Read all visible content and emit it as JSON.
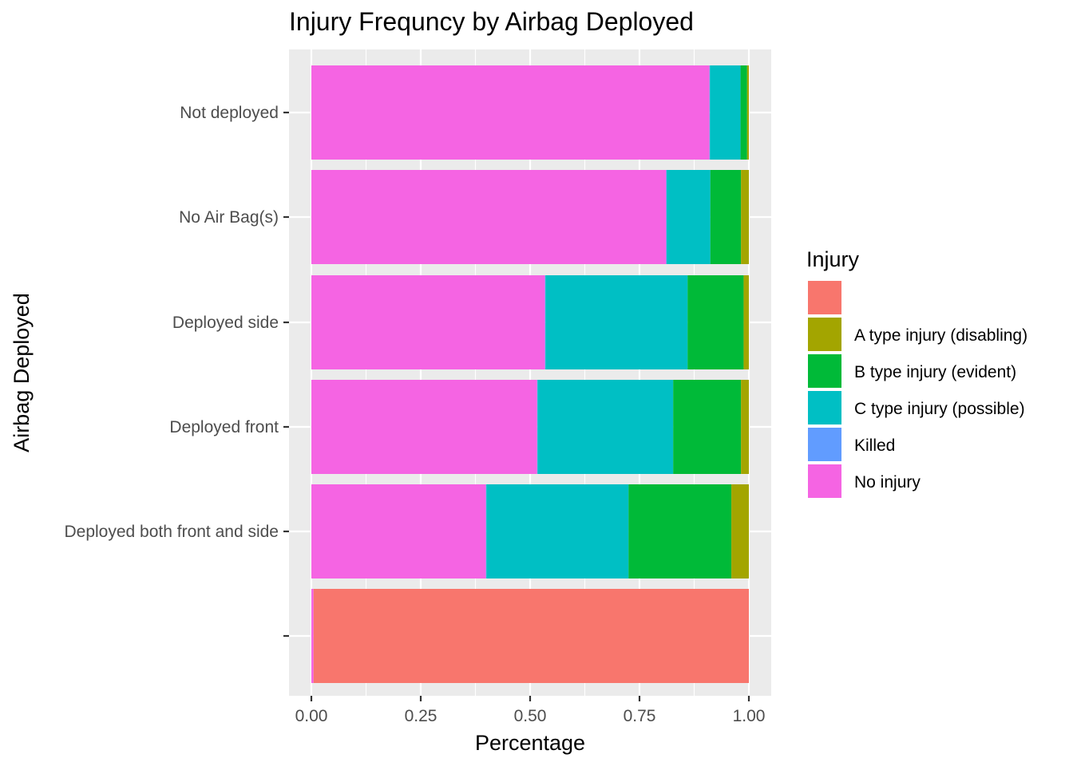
{
  "chart_data": {
    "type": "bar",
    "orientation": "horizontal",
    "stacked": true,
    "title": "Injury Frequncy by Airbag Deployed",
    "xlabel": "Percentage",
    "ylabel": "Airbag Deployed",
    "xlim": [
      0,
      1
    ],
    "xticks": [
      "0.00",
      "0.25",
      "0.50",
      "0.75",
      "1.00"
    ],
    "grid": true,
    "legend_position": "right",
    "legend_title": "Injury",
    "categories": [
      "Not deployed",
      "No Air Bag(s)",
      "Deployed side",
      "Deployed front",
      "Deployed both front and side",
      ""
    ],
    "series": [
      {
        "name": "",
        "color": "#F8766D",
        "values": [
          0,
          0,
          0,
          0,
          0,
          0.995
        ]
      },
      {
        "name": "A type injury (disabling)",
        "color": "#A3A500",
        "values": [
          0.004,
          0.018,
          0.012,
          0.018,
          0.04,
          0
        ]
      },
      {
        "name": "B type injury (evident)",
        "color": "#00BA38",
        "values": [
          0.015,
          0.07,
          0.128,
          0.155,
          0.235,
          0
        ]
      },
      {
        "name": "C type injury (possible)",
        "color": "#00BFC4",
        "values": [
          0.07,
          0.1,
          0.325,
          0.31,
          0.325,
          0
        ]
      },
      {
        "name": "Killed",
        "color": "#619CFF",
        "values": [
          0.001,
          0.001,
          0.001,
          0.001,
          0.001,
          0
        ]
      },
      {
        "name": "No injury",
        "color": "#F564E3",
        "values": [
          0.91,
          0.811,
          0.534,
          0.516,
          0.399,
          0.005
        ]
      }
    ]
  }
}
